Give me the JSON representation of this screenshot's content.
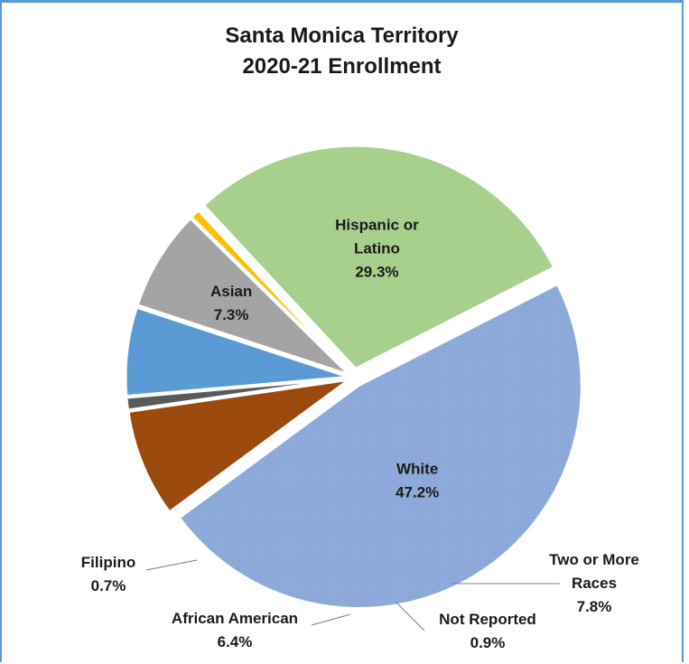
{
  "chart_data": {
    "type": "pie",
    "title": "Santa Monica Territory",
    "subtitle": "2020-21 Enrollment",
    "slices": [
      {
        "label": "White",
        "label_lines": [
          "White"
        ],
        "value": 47.2,
        "value_label": "47.2%",
        "color": "#8eaadb"
      },
      {
        "label": "Two or More Races",
        "label_lines": [
          "Two or More",
          "Races"
        ],
        "value": 7.8,
        "value_label": "7.8%",
        "color": "#9c4a0e"
      },
      {
        "label": "Not Reported",
        "label_lines": [
          "Not Reported"
        ],
        "value": 0.9,
        "value_label": "0.9%",
        "color": "#5a5a5a"
      },
      {
        "label": "African American",
        "label_lines": [
          "African American"
        ],
        "value": 6.4,
        "value_label": "6.4%",
        "color": "#5b9bd5"
      },
      {
        "label": "Asian",
        "label_lines": [
          "Asian"
        ],
        "value": 7.3,
        "value_label": "7.3%",
        "color": "#a5a5a5"
      },
      {
        "label": "Filipino",
        "label_lines": [
          "Filipino"
        ],
        "value": 0.7,
        "value_label": "0.7%",
        "color": "#ffc000"
      },
      {
        "label": "Hispanic or Latino",
        "label_lines": [
          "Hispanic or",
          "Latino"
        ],
        "value": 29.3,
        "value_label": "29.3%",
        "color": "#a9d18e"
      }
    ]
  }
}
